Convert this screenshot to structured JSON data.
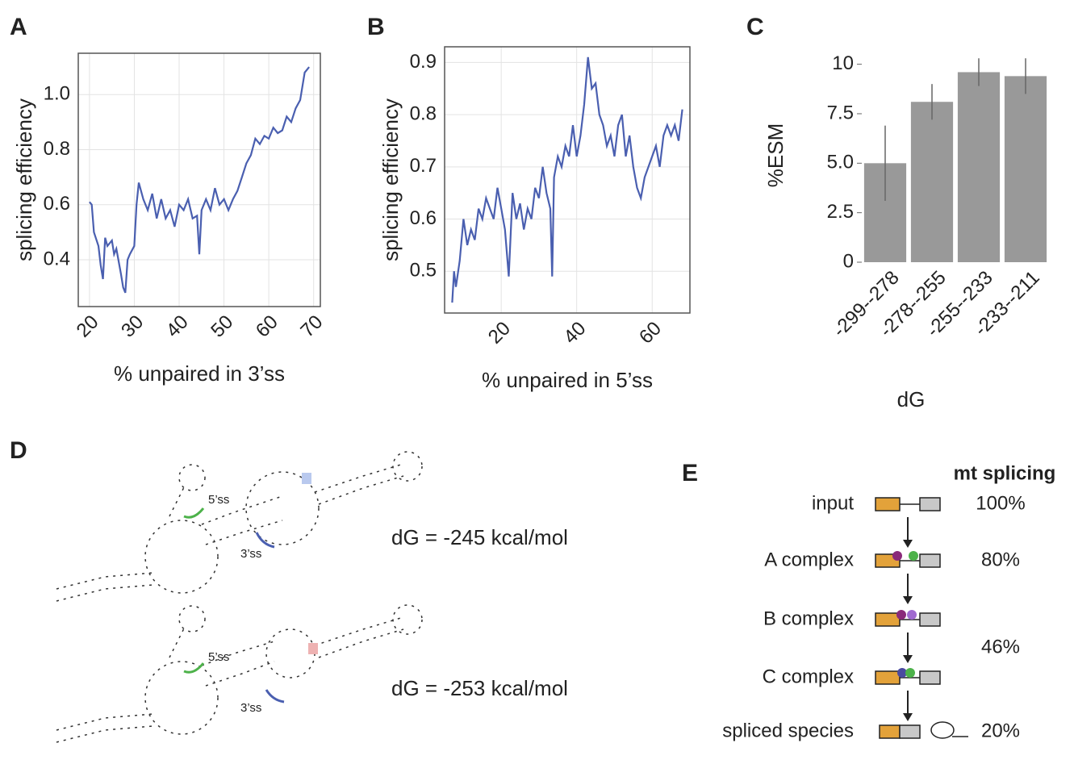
{
  "chart_data": [
    {
      "type": "line",
      "panel": "A",
      "x_label": "% unpaired in 3’ss",
      "y_label": "splicing efficiency",
      "x": [
        20,
        20.5,
        21,
        22,
        22.5,
        23,
        23.5,
        24,
        25,
        25.5,
        26,
        27,
        27.5,
        28,
        28.5,
        29,
        30,
        30.5,
        31,
        32,
        33,
        34,
        35,
        36,
        37,
        38,
        39,
        40,
        41,
        42,
        43,
        44,
        44.5,
        45,
        46,
        47,
        48,
        49,
        50,
        51,
        52,
        53,
        54,
        55,
        56,
        57,
        58,
        59,
        60,
        61,
        62,
        63,
        64,
        65,
        66,
        67,
        68,
        69
      ],
      "values": [
        0.61,
        0.6,
        0.5,
        0.45,
        0.38,
        0.33,
        0.48,
        0.45,
        0.47,
        0.42,
        0.44,
        0.35,
        0.3,
        0.28,
        0.4,
        0.42,
        0.45,
        0.6,
        0.68,
        0.62,
        0.58,
        0.64,
        0.55,
        0.62,
        0.55,
        0.58,
        0.52,
        0.6,
        0.58,
        0.62,
        0.55,
        0.56,
        0.42,
        0.58,
        0.62,
        0.58,
        0.66,
        0.6,
        0.62,
        0.58,
        0.62,
        0.65,
        0.7,
        0.75,
        0.78,
        0.84,
        0.82,
        0.85,
        0.84,
        0.88,
        0.86,
        0.87,
        0.92,
        0.9,
        0.95,
        0.98,
        1.08,
        1.1
      ],
      "color": "#4a5fb0",
      "xlim": [
        17.5,
        71.5
      ],
      "ylim": [
        0.23,
        1.15
      ],
      "xticks": [
        20,
        30,
        40,
        50,
        60,
        70
      ],
      "yticks": [
        0.4,
        0.6,
        0.8,
        {
          "value": 1,
          "label": "1.0"
        }
      ],
      "grid": true
    },
    {
      "type": "line",
      "panel": "B",
      "x_label": "% unpaired in 5’ss",
      "y_label": "splicing efficiency",
      "x": [
        7,
        7.5,
        8,
        9,
        10,
        11,
        12,
        13,
        14,
        15,
        16,
        17,
        18,
        19,
        20,
        21,
        22,
        23,
        24,
        25,
        26,
        27,
        28,
        29,
        30,
        31,
        32,
        33,
        33.5,
        34,
        35,
        36,
        37,
        38,
        39,
        40,
        41,
        42,
        43,
        44,
        45,
        46,
        47,
        48,
        49,
        50,
        51,
        52,
        53,
        54,
        55,
        56,
        57,
        58,
        59,
        60,
        61,
        62,
        63,
        64,
        65,
        66,
        67,
        68
      ],
      "values": [
        0.44,
        0.5,
        0.47,
        0.52,
        0.6,
        0.55,
        0.58,
        0.56,
        0.62,
        0.6,
        0.64,
        0.62,
        0.6,
        0.66,
        0.62,
        0.58,
        0.49,
        0.65,
        0.6,
        0.63,
        0.58,
        0.62,
        0.6,
        0.66,
        0.64,
        0.7,
        0.65,
        0.62,
        0.49,
        0.68,
        0.72,
        0.7,
        0.74,
        0.72,
        0.78,
        0.72,
        0.76,
        0.82,
        0.91,
        0.85,
        0.86,
        0.8,
        0.78,
        0.74,
        0.76,
        0.72,
        0.78,
        0.8,
        0.72,
        0.76,
        0.7,
        0.66,
        0.64,
        0.68,
        0.7,
        0.72,
        0.74,
        0.7,
        0.76,
        0.78,
        0.76,
        0.78,
        0.75,
        0.81
      ],
      "color": "#4a5fb0",
      "xlim": [
        5,
        70
      ],
      "ylim": [
        0.42,
        0.93
      ],
      "xticks": [
        20,
        40,
        60
      ],
      "yticks": [
        0.5,
        0.6,
        0.7,
        0.8,
        0.9
      ],
      "grid": true
    },
    {
      "type": "bar",
      "panel": "C",
      "x_label": "dG",
      "y_label": "%ESM",
      "categories": [
        "-299--278",
        "-278--255",
        "-255--233",
        "-233--211"
      ],
      "values": [
        5.0,
        8.1,
        9.6,
        9.4
      ],
      "errors": [
        1.9,
        0.9,
        0.7,
        0.9
      ],
      "color": "#999999",
      "ylim": [
        0,
        10.8
      ],
      "yticks": [
        0,
        2.5,
        {
          "value": 5,
          "label": "5.0"
        },
        7.5,
        10
      ],
      "grid": false
    }
  ],
  "diagram_d": {
    "panel": "D",
    "structures": [
      {
        "dG": "dG = -245 kcal/mol",
        "five_ss": "5’ss",
        "three_ss": "3’ss"
      },
      {
        "dG": "dG = -253 kcal/mol",
        "five_ss": "5’ss",
        "three_ss": "3’ss"
      }
    ]
  },
  "diagram_e": {
    "panel": "E",
    "header": "mt splicing",
    "rows": [
      {
        "label": "input",
        "value": "100%"
      },
      {
        "label": "A complex",
        "value": "80%"
      },
      {
        "label": "B complex"
      },
      {
        "label": "C complex"
      },
      {
        "label": "spliced species",
        "value": "20%"
      }
    ],
    "bc_value": "46%"
  }
}
